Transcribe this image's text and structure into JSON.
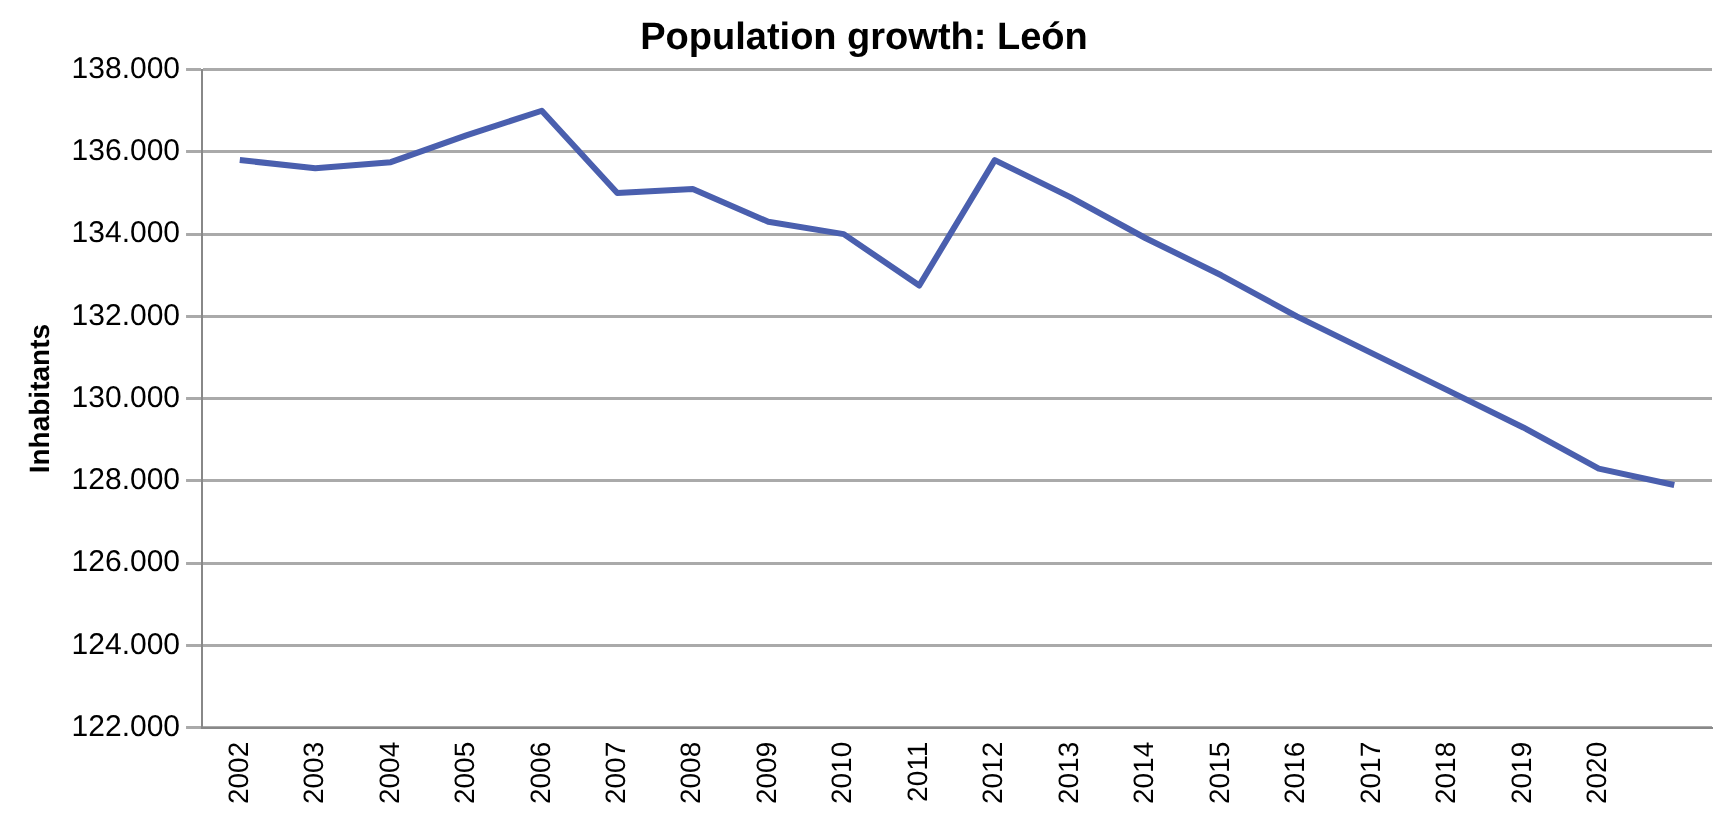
{
  "chart_data": {
    "type": "line",
    "title": "Population growth: León",
    "ylabel": "Inhabitants",
    "categories": [
      "2002",
      "2003",
      "2004",
      "2005",
      "2006",
      "2007",
      "2008",
      "2009",
      "2010",
      "2011",
      "2012",
      "2013",
      "2014",
      "2015",
      "2016",
      "2017",
      "2018",
      "2019",
      "2020",
      null
    ],
    "series": [
      {
        "color": "#4a5fae",
        "values": [
          135800,
          135600,
          135750,
          136400,
          137000,
          135000,
          135100,
          134300,
          134000,
          132750,
          135800,
          134900,
          133900,
          133000,
          132000,
          131100,
          130200,
          129300,
          128300,
          127900
        ]
      }
    ],
    "ylim": [
      122000,
      138000
    ],
    "yticks": [
      {
        "value": 122000,
        "label": "122.000"
      },
      {
        "value": 124000,
        "label": "124.000"
      },
      {
        "value": 126000,
        "label": "126.000"
      },
      {
        "value": 128000,
        "label": "128.000"
      },
      {
        "value": 130000,
        "label": "130.000"
      },
      {
        "value": 132000,
        "label": "132.000"
      },
      {
        "value": 134000,
        "label": "134.000"
      },
      {
        "value": 136000,
        "label": "136.000"
      },
      {
        "value": 138000,
        "label": "138.000"
      }
    ],
    "grid": "y",
    "marker": "none",
    "line_style": "solid",
    "legend": false
  }
}
